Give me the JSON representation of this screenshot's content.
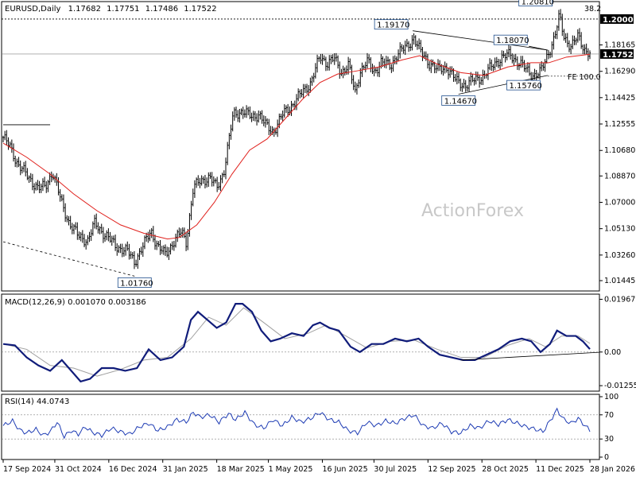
{
  "chart_data": [
    {
      "type": "candlestick",
      "title": "EURUSD,Daily",
      "ohlc_last": {
        "open": "1.17682",
        "high": "1.17751",
        "low": "1.17486",
        "close": "1.17522"
      },
      "watermark": "ActionForex",
      "ylim": [
        1.00825,
        1.21125
      ],
      "y_ticks": [
        "1.20000",
        "1.18165",
        "1.16290",
        "1.14425",
        "1.12555",
        "1.10680",
        "1.08870",
        "1.07000",
        "1.05130",
        "1.03260",
        "1.01445"
      ],
      "last_price_label": "1.17522",
      "level_label": "1.20000",
      "price_path": [
        {
          "d": 0,
          "p": 1.116
        },
        {
          "d": 6,
          "p": 1.109
        },
        {
          "d": 12,
          "p": 1.098
        },
        {
          "d": 22,
          "p": 1.087
        },
        {
          "d": 30,
          "p": 1.08
        },
        {
          "d": 36,
          "p": 1.081
        },
        {
          "d": 42,
          "p": 1.092
        },
        {
          "d": 50,
          "p": 1.069
        },
        {
          "d": 56,
          "p": 1.056
        },
        {
          "d": 64,
          "p": 1.046
        },
        {
          "d": 72,
          "p": 1.043
        },
        {
          "d": 78,
          "p": 1.055
        },
        {
          "d": 88,
          "p": 1.046
        },
        {
          "d": 96,
          "p": 1.039
        },
        {
          "d": 106,
          "p": 1.035
        },
        {
          "d": 112,
          "p": 1.028
        },
        {
          "d": 120,
          "p": 1.04
        },
        {
          "d": 126,
          "p": 1.05
        },
        {
          "d": 132,
          "p": 1.038
        },
        {
          "d": 138,
          "p": 1.033
        },
        {
          "d": 146,
          "p": 1.043
        },
        {
          "d": 152,
          "p": 1.049
        },
        {
          "d": 156,
          "p": 1.042
        },
        {
          "d": 162,
          "p": 1.08
        },
        {
          "d": 168,
          "p": 1.085
        },
        {
          "d": 176,
          "p": 1.088
        },
        {
          "d": 182,
          "p": 1.08
        },
        {
          "d": 188,
          "p": 1.092
        },
        {
          "d": 196,
          "p": 1.132
        },
        {
          "d": 204,
          "p": 1.135
        },
        {
          "d": 212,
          "p": 1.13
        },
        {
          "d": 218,
          "p": 1.133
        },
        {
          "d": 224,
          "p": 1.124
        },
        {
          "d": 230,
          "p": 1.12
        },
        {
          "d": 238,
          "p": 1.132
        },
        {
          "d": 246,
          "p": 1.139
        },
        {
          "d": 254,
          "p": 1.147
        },
        {
          "d": 262,
          "p": 1.155
        },
        {
          "d": 270,
          "p": 1.173
        },
        {
          "d": 276,
          "p": 1.169
        },
        {
          "d": 282,
          "p": 1.172
        },
        {
          "d": 288,
          "p": 1.162
        },
        {
          "d": 294,
          "p": 1.168
        },
        {
          "d": 300,
          "p": 1.147
        },
        {
          "d": 304,
          "p": 1.163
        },
        {
          "d": 310,
          "p": 1.17
        },
        {
          "d": 316,
          "p": 1.162
        },
        {
          "d": 322,
          "p": 1.17
        },
        {
          "d": 330,
          "p": 1.166
        },
        {
          "d": 336,
          "p": 1.176
        },
        {
          "d": 344,
          "p": 1.18
        },
        {
          "d": 350,
          "p": 1.187
        },
        {
          "d": 356,
          "p": 1.176
        },
        {
          "d": 362,
          "p": 1.17
        },
        {
          "d": 370,
          "p": 1.164
        },
        {
          "d": 378,
          "p": 1.166
        },
        {
          "d": 386,
          "p": 1.156
        },
        {
          "d": 394,
          "p": 1.153
        },
        {
          "d": 402,
          "p": 1.157
        },
        {
          "d": 410,
          "p": 1.16
        },
        {
          "d": 418,
          "p": 1.168
        },
        {
          "d": 424,
          "p": 1.172
        },
        {
          "d": 432,
          "p": 1.175
        },
        {
          "d": 438,
          "p": 1.17
        },
        {
          "d": 446,
          "p": 1.164
        },
        {
          "d": 452,
          "p": 1.16
        },
        {
          "d": 458,
          "p": 1.162
        },
        {
          "d": 464,
          "p": 1.175
        },
        {
          "d": 470,
          "p": 1.187
        },
        {
          "d": 474,
          "p": 1.202
        },
        {
          "d": 478,
          "p": 1.188
        },
        {
          "d": 484,
          "p": 1.18
        },
        {
          "d": 490,
          "p": 1.188
        },
        {
          "d": 496,
          "p": 1.178
        },
        {
          "d": 500,
          "p": 1.1752
        }
      ],
      "ma_path": [
        {
          "d": 0,
          "p": 1.112
        },
        {
          "d": 20,
          "p": 1.102
        },
        {
          "d": 40,
          "p": 1.09
        },
        {
          "d": 60,
          "p": 1.076
        },
        {
          "d": 80,
          "p": 1.064
        },
        {
          "d": 100,
          "p": 1.054
        },
        {
          "d": 120,
          "p": 1.048
        },
        {
          "d": 140,
          "p": 1.044
        },
        {
          "d": 150,
          "p": 1.045
        },
        {
          "d": 165,
          "p": 1.054
        },
        {
          "d": 180,
          "p": 1.07
        },
        {
          "d": 195,
          "p": 1.09
        },
        {
          "d": 210,
          "p": 1.107
        },
        {
          "d": 225,
          "p": 1.115
        },
        {
          "d": 240,
          "p": 1.129
        },
        {
          "d": 255,
          "p": 1.143
        },
        {
          "d": 270,
          "p": 1.155
        },
        {
          "d": 285,
          "p": 1.161
        },
        {
          "d": 300,
          "p": 1.163
        },
        {
          "d": 320,
          "p": 1.166
        },
        {
          "d": 340,
          "p": 1.171
        },
        {
          "d": 355,
          "p": 1.174
        },
        {
          "d": 370,
          "p": 1.168
        },
        {
          "d": 390,
          "p": 1.162
        },
        {
          "d": 410,
          "p": 1.16
        },
        {
          "d": 430,
          "p": 1.166
        },
        {
          "d": 450,
          "p": 1.169
        },
        {
          "d": 465,
          "p": 1.169
        },
        {
          "d": 480,
          "p": 1.173
        },
        {
          "d": 500,
          "p": 1.175
        }
      ],
      "labels": [
        {
          "text": "1.01760",
          "d": 112,
          "p": 1.0176
        },
        {
          "text": "1.19170",
          "d": 349,
          "p": 1.1917
        },
        {
          "text": "1.18070",
          "d": 448,
          "p": 1.1807
        },
        {
          "text": "1.14670",
          "d": 388,
          "p": 1.1467
        },
        {
          "text": "1.15760",
          "d": 459,
          "p": 1.1576
        },
        {
          "text": "1.20810",
          "d": 472,
          "p": 1.2081
        }
      ],
      "fib_labels": [
        {
          "text": "38.2",
          "p": 1.204
        },
        {
          "text": "FE 100.0",
          "p": 1.1595
        }
      ]
    },
    {
      "type": "line",
      "title": "MACD(12,26,9) 0.001070 0.003186",
      "ylim": [
        -0.014,
        0.021
      ],
      "y_ticks": [
        "0.019679",
        "0.00",
        "-0.012552"
      ],
      "zero_label": "0.00",
      "macd_path": [
        {
          "d": 0,
          "v": 0.003
        },
        {
          "d": 10,
          "v": 0.0025
        },
        {
          "d": 20,
          "v": -0.002
        },
        {
          "d": 30,
          "v": -0.005
        },
        {
          "d": 40,
          "v": -0.007
        },
        {
          "d": 50,
          "v": -0.003
        },
        {
          "d": 56,
          "v": -0.006
        },
        {
          "d": 66,
          "v": -0.011
        },
        {
          "d": 74,
          "v": -0.01
        },
        {
          "d": 84,
          "v": -0.006
        },
        {
          "d": 94,
          "v": -0.006
        },
        {
          "d": 104,
          "v": -0.007
        },
        {
          "d": 114,
          "v": -0.006
        },
        {
          "d": 124,
          "v": 0.001
        },
        {
          "d": 134,
          "v": -0.003
        },
        {
          "d": 144,
          "v": -0.002
        },
        {
          "d": 154,
          "v": 0.002
        },
        {
          "d": 160,
          "v": 0.012
        },
        {
          "d": 166,
          "v": 0.015
        },
        {
          "d": 174,
          "v": 0.012
        },
        {
          "d": 182,
          "v": 0.009
        },
        {
          "d": 190,
          "v": 0.011
        },
        {
          "d": 198,
          "v": 0.018
        },
        {
          "d": 204,
          "v": 0.018
        },
        {
          "d": 212,
          "v": 0.015
        },
        {
          "d": 220,
          "v": 0.008
        },
        {
          "d": 228,
          "v": 0.004
        },
        {
          "d": 236,
          "v": 0.005
        },
        {
          "d": 246,
          "v": 0.007
        },
        {
          "d": 256,
          "v": 0.006
        },
        {
          "d": 264,
          "v": 0.01
        },
        {
          "d": 270,
          "v": 0.011
        },
        {
          "d": 278,
          "v": 0.009
        },
        {
          "d": 286,
          "v": 0.008
        },
        {
          "d": 296,
          "v": 0.002
        },
        {
          "d": 304,
          "v": 0.0
        },
        {
          "d": 314,
          "v": 0.003
        },
        {
          "d": 324,
          "v": 0.003
        },
        {
          "d": 334,
          "v": 0.005
        },
        {
          "d": 344,
          "v": 0.004
        },
        {
          "d": 354,
          "v": 0.005
        },
        {
          "d": 362,
          "v": 0.002
        },
        {
          "d": 372,
          "v": -0.001
        },
        {
          "d": 382,
          "v": -0.002
        },
        {
          "d": 392,
          "v": -0.003
        },
        {
          "d": 402,
          "v": -0.003
        },
        {
          "d": 412,
          "v": -0.001
        },
        {
          "d": 422,
          "v": 0.001
        },
        {
          "d": 432,
          "v": 0.004
        },
        {
          "d": 442,
          "v": 0.005
        },
        {
          "d": 450,
          "v": 0.004
        },
        {
          "d": 458,
          "v": 0.0
        },
        {
          "d": 466,
          "v": 0.003
        },
        {
          "d": 472,
          "v": 0.008
        },
        {
          "d": 480,
          "v": 0.006
        },
        {
          "d": 488,
          "v": 0.006
        },
        {
          "d": 494,
          "v": 0.004
        },
        {
          "d": 500,
          "v": 0.0011
        }
      ],
      "signal_path": [
        {
          "d": 0,
          "v": 0.003
        },
        {
          "d": 20,
          "v": 0.001
        },
        {
          "d": 40,
          "v": -0.005
        },
        {
          "d": 60,
          "v": -0.006
        },
        {
          "d": 80,
          "v": -0.009
        },
        {
          "d": 100,
          "v": -0.0065
        },
        {
          "d": 120,
          "v": -0.003
        },
        {
          "d": 140,
          "v": -0.002
        },
        {
          "d": 160,
          "v": 0.005
        },
        {
          "d": 175,
          "v": 0.013
        },
        {
          "d": 190,
          "v": 0.01
        },
        {
          "d": 205,
          "v": 0.0165
        },
        {
          "d": 222,
          "v": 0.011
        },
        {
          "d": 240,
          "v": 0.005
        },
        {
          "d": 260,
          "v": 0.007
        },
        {
          "d": 275,
          "v": 0.01
        },
        {
          "d": 292,
          "v": 0.006
        },
        {
          "d": 310,
          "v": 0.0015
        },
        {
          "d": 330,
          "v": 0.004
        },
        {
          "d": 350,
          "v": 0.0045
        },
        {
          "d": 370,
          "v": 0.001
        },
        {
          "d": 390,
          "v": -0.002
        },
        {
          "d": 410,
          "v": -0.002
        },
        {
          "d": 430,
          "v": 0.0025
        },
        {
          "d": 448,
          "v": 0.005
        },
        {
          "d": 462,
          "v": 0.002
        },
        {
          "d": 476,
          "v": 0.006
        },
        {
          "d": 490,
          "v": 0.006
        },
        {
          "d": 500,
          "v": 0.0032
        }
      ]
    },
    {
      "type": "line",
      "title": "RSI(14) 44.0743",
      "ylim": [
        0,
        100
      ],
      "y_ticks": [
        "100",
        "70",
        "30",
        "0"
      ],
      "rsi_path": [
        {
          "d": 0,
          "v": 52
        },
        {
          "d": 8,
          "v": 60
        },
        {
          "d": 14,
          "v": 45
        },
        {
          "d": 20,
          "v": 40
        },
        {
          "d": 28,
          "v": 46
        },
        {
          "d": 34,
          "v": 36
        },
        {
          "d": 40,
          "v": 42
        },
        {
          "d": 46,
          "v": 58
        },
        {
          "d": 52,
          "v": 34
        },
        {
          "d": 58,
          "v": 44
        },
        {
          "d": 64,
          "v": 38
        },
        {
          "d": 70,
          "v": 50
        },
        {
          "d": 76,
          "v": 41
        },
        {
          "d": 84,
          "v": 36
        },
        {
          "d": 92,
          "v": 48
        },
        {
          "d": 100,
          "v": 42
        },
        {
          "d": 108,
          "v": 38
        },
        {
          "d": 116,
          "v": 50
        },
        {
          "d": 124,
          "v": 56
        },
        {
          "d": 132,
          "v": 44
        },
        {
          "d": 140,
          "v": 50
        },
        {
          "d": 148,
          "v": 62
        },
        {
          "d": 156,
          "v": 58
        },
        {
          "d": 162,
          "v": 74
        },
        {
          "d": 168,
          "v": 66
        },
        {
          "d": 176,
          "v": 70
        },
        {
          "d": 184,
          "v": 58
        },
        {
          "d": 192,
          "v": 72
        },
        {
          "d": 198,
          "v": 62
        },
        {
          "d": 206,
          "v": 74
        },
        {
          "d": 214,
          "v": 54
        },
        {
          "d": 222,
          "v": 48
        },
        {
          "d": 230,
          "v": 62
        },
        {
          "d": 238,
          "v": 52
        },
        {
          "d": 246,
          "v": 66
        },
        {
          "d": 254,
          "v": 58
        },
        {
          "d": 262,
          "v": 64
        },
        {
          "d": 270,
          "v": 74
        },
        {
          "d": 278,
          "v": 62
        },
        {
          "d": 286,
          "v": 58
        },
        {
          "d": 294,
          "v": 44
        },
        {
          "d": 302,
          "v": 40
        },
        {
          "d": 310,
          "v": 58
        },
        {
          "d": 318,
          "v": 52
        },
        {
          "d": 326,
          "v": 60
        },
        {
          "d": 334,
          "v": 56
        },
        {
          "d": 342,
          "v": 64
        },
        {
          "d": 350,
          "v": 70
        },
        {
          "d": 358,
          "v": 52
        },
        {
          "d": 366,
          "v": 48
        },
        {
          "d": 374,
          "v": 56
        },
        {
          "d": 382,
          "v": 42
        },
        {
          "d": 390,
          "v": 40
        },
        {
          "d": 398,
          "v": 52
        },
        {
          "d": 406,
          "v": 48
        },
        {
          "d": 414,
          "v": 60
        },
        {
          "d": 422,
          "v": 54
        },
        {
          "d": 430,
          "v": 62
        },
        {
          "d": 438,
          "v": 56
        },
        {
          "d": 446,
          "v": 50
        },
        {
          "d": 454,
          "v": 46
        },
        {
          "d": 460,
          "v": 42
        },
        {
          "d": 466,
          "v": 60
        },
        {
          "d": 472,
          "v": 78
        },
        {
          "d": 478,
          "v": 62
        },
        {
          "d": 484,
          "v": 56
        },
        {
          "d": 490,
          "v": 64
        },
        {
          "d": 496,
          "v": 52
        },
        {
          "d": 500,
          "v": 44
        }
      ]
    }
  ],
  "x_axis": {
    "labels": [
      "17 Sep 2024",
      "31 Oct 2024",
      "16 Dec 2024",
      "31 Jan 2025",
      "18 Mar 2025",
      "1 May 2025",
      "16 Jun 2025",
      "30 Jul 2025",
      "12 Sep 2025",
      "28 Oct 2025",
      "11 Dec 2025",
      "28 Jan 2026"
    ],
    "positions": [
      0,
      44,
      90,
      136,
      182,
      226,
      272,
      316,
      362,
      408,
      454,
      500
    ]
  },
  "colors": {
    "candle": "#000000",
    "ma": "#e0201c",
    "macd": "#101c7a",
    "signal": "#a0a0a0",
    "grid": "#808080",
    "label_border": "#1f4e8c",
    "tag_bg": "#000000"
  }
}
